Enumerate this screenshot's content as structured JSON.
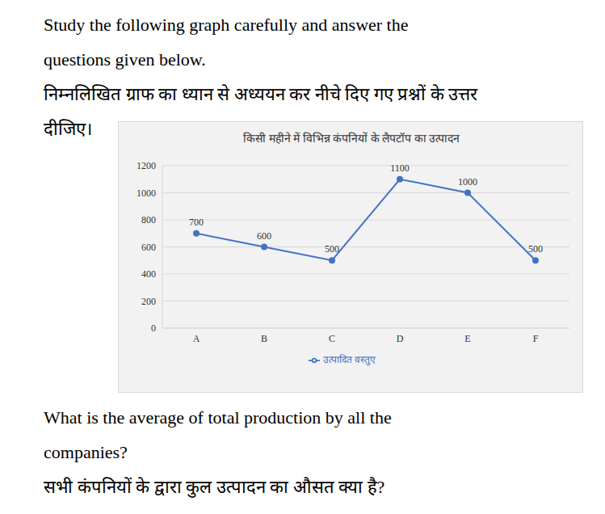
{
  "intro": [
    "Study the following graph carefully and answer the",
    "questions given below.",
    "निम्नलिखित ग्राफ का ध्यान से अध्ययन कर नीचे दिए गए प्रश्नों के उत्तर",
    "दीजिए।"
  ],
  "chart_data": {
    "type": "line",
    "title": "किसी महीने में विभिन्न कंपनियों के लैपटॉप का उत्पादन",
    "categories": [
      "A",
      "B",
      "C",
      "D",
      "E",
      "F"
    ],
    "series": [
      {
        "name": "उत्पादित वस्तुए",
        "color": "#4472c4",
        "marker": "circle",
        "values": [
          700,
          600,
          500,
          1100,
          1000,
          500
        ]
      }
    ],
    "ylim": [
      0,
      1200
    ],
    "yticks": [
      0,
      200,
      400,
      600,
      800,
      1000,
      1200
    ],
    "grid": true,
    "data_labels": true,
    "legend": "bottom"
  },
  "question": [
    "What is the average of total production by all the",
    "companies?",
    "सभी कंपनियों के द्वारा कुल उत्पादन का औसत क्या है?"
  ]
}
